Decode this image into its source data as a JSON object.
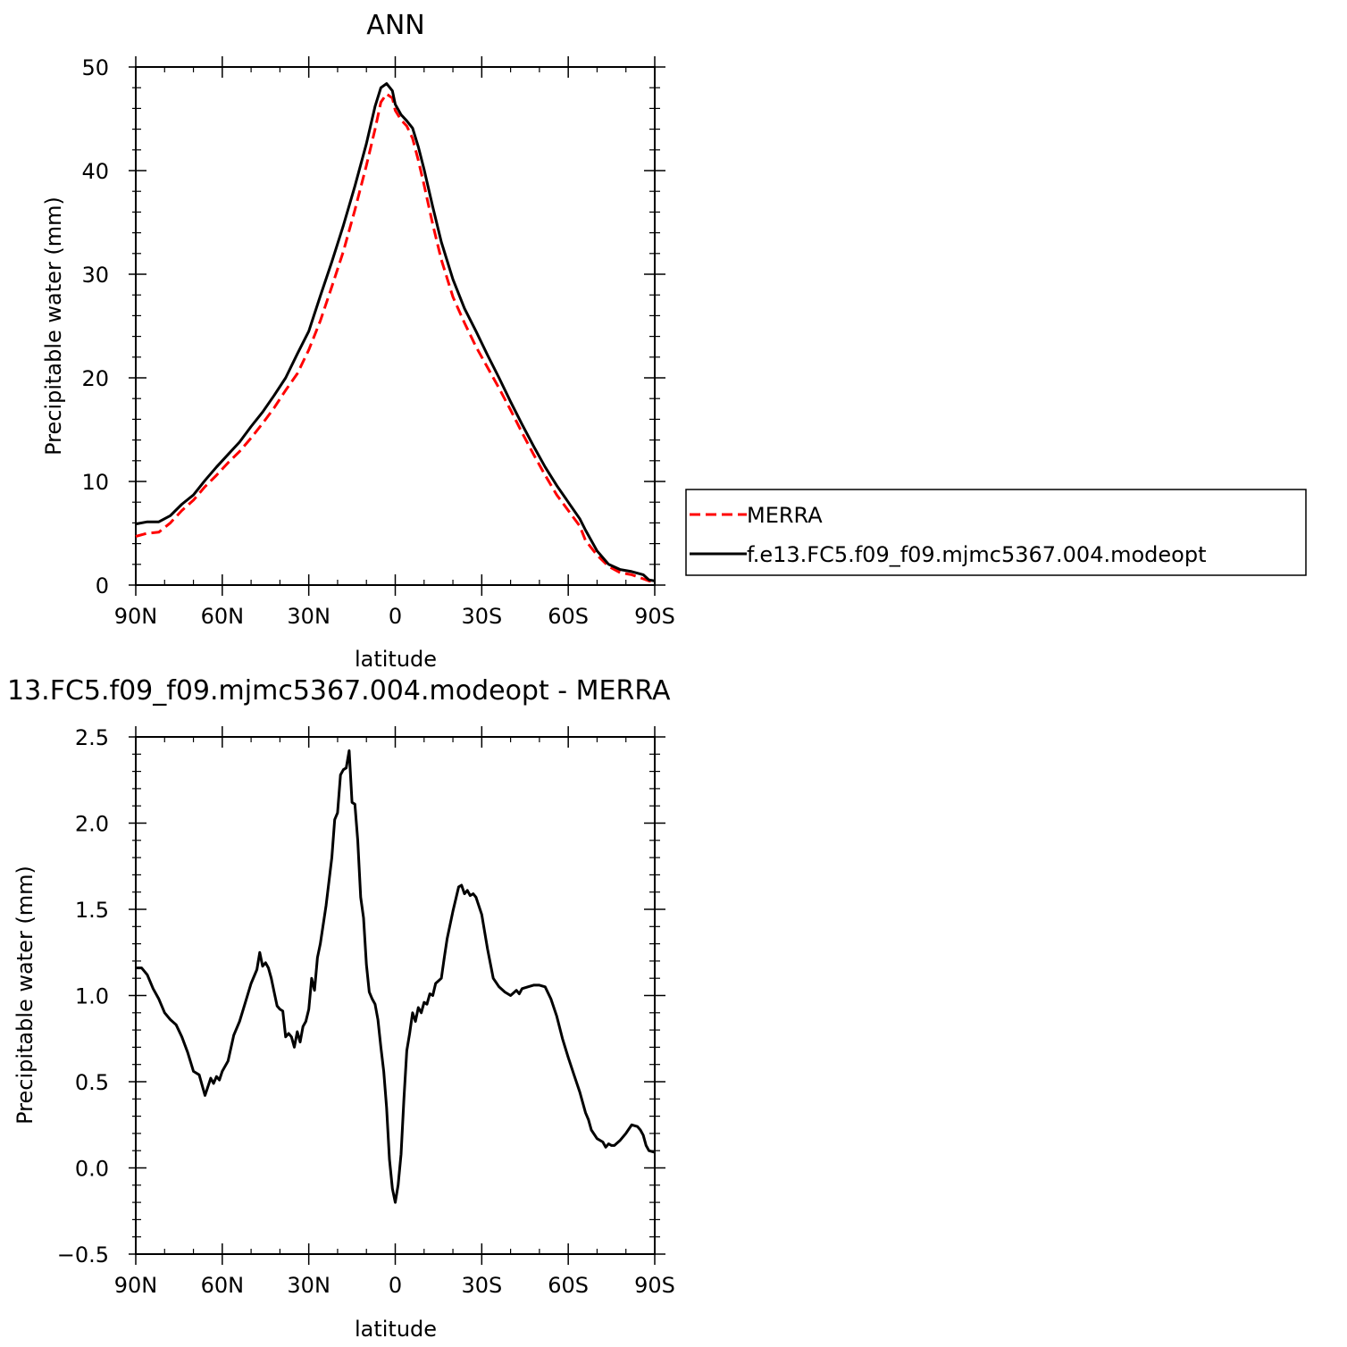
{
  "chart_data": [
    {
      "type": "line",
      "title": "ANN",
      "xlabel": "latitude",
      "ylabel": "Precipitable water (mm)",
      "x_tick_labels": [
        "90N",
        "60N",
        "30N",
        "0",
        "30S",
        "60S",
        "90S"
      ],
      "y_tick_labels": [
        "0",
        "10",
        "20",
        "30",
        "40",
        "50"
      ],
      "xlim": [
        90,
        -90
      ],
      "ylim": [
        0,
        50
      ],
      "legend": {
        "placement": "right",
        "entries": [
          "MERRA",
          "f.e13.FC5.f09_f09.mjmc5367.004.modeopt"
        ]
      },
      "series": [
        {
          "name": "MERRA",
          "color": "#ff0000",
          "dash": "dashed",
          "points": [
            [
              90,
              4.7
            ],
            [
              86,
              5.0
            ],
            [
              82,
              5.1
            ],
            [
              78,
              6.0
            ],
            [
              74,
              7.2
            ],
            [
              70,
              8.2
            ],
            [
              66,
              9.5
            ],
            [
              62,
              10.6
            ],
            [
              58,
              11.8
            ],
            [
              54,
              12.9
            ],
            [
              50,
              14.2
            ],
            [
              46,
              15.6
            ],
            [
              42,
              17.1
            ],
            [
              38,
              18.8
            ],
            [
              34,
              20.4
            ],
            [
              30,
              22.7
            ],
            [
              26,
              25.5
            ],
            [
              22,
              28.8
            ],
            [
              18,
              32.2
            ],
            [
              14,
              36.2
            ],
            [
              10,
              40.5
            ],
            [
              7,
              44.0
            ],
            [
              5,
              46.6
            ],
            [
              3,
              47.4
            ],
            [
              1,
              47.0
            ],
            [
              0,
              45.8
            ],
            [
              -2,
              44.9
            ],
            [
              -4,
              44.3
            ],
            [
              -6,
              43.1
            ],
            [
              -8,
              41.0
            ],
            [
              -10,
              38.6
            ],
            [
              -13,
              34.8
            ],
            [
              -16,
              31.4
            ],
            [
              -20,
              27.8
            ],
            [
              -24,
              25.3
            ],
            [
              -28,
              23.0
            ],
            [
              -32,
              21.0
            ],
            [
              -36,
              19.0
            ],
            [
              -40,
              16.9
            ],
            [
              -44,
              14.7
            ],
            [
              -48,
              12.6
            ],
            [
              -52,
              10.6
            ],
            [
              -56,
              8.7
            ],
            [
              -60,
              7.2
            ],
            [
              -64,
              5.7
            ],
            [
              -66,
              4.3
            ],
            [
              -70,
              2.9
            ],
            [
              -74,
              1.8
            ],
            [
              -78,
              1.2
            ],
            [
              -82,
              1.0
            ],
            [
              -86,
              0.6
            ],
            [
              -88,
              0.4
            ],
            [
              -90,
              0.3
            ]
          ]
        },
        {
          "name": "f.e13.FC5.f09_f09.mjmc5367.004.modeopt",
          "color": "#000000",
          "dash": "solid",
          "points": [
            [
              90,
              5.9
            ],
            [
              86,
              6.1
            ],
            [
              82,
              6.1
            ],
            [
              78,
              6.7
            ],
            [
              74,
              7.8
            ],
            [
              70,
              8.7
            ],
            [
              66,
              10.1
            ],
            [
              62,
              11.4
            ],
            [
              58,
              12.6
            ],
            [
              54,
              13.8
            ],
            [
              50,
              15.3
            ],
            [
              46,
              16.7
            ],
            [
              42,
              18.3
            ],
            [
              38,
              20.0
            ],
            [
              34,
              22.3
            ],
            [
              30,
              24.5
            ],
            [
              26,
              27.9
            ],
            [
              22,
              31.2
            ],
            [
              18,
              34.7
            ],
            [
              14,
              38.5
            ],
            [
              10,
              42.6
            ],
            [
              7,
              46.2
            ],
            [
              5,
              48.0
            ],
            [
              3,
              48.4
            ],
            [
              1,
              47.7
            ],
            [
              0,
              46.4
            ],
            [
              -2,
              45.4
            ],
            [
              -4,
              44.8
            ],
            [
              -6,
              44.1
            ],
            [
              -8,
              42.3
            ],
            [
              -10,
              40.1
            ],
            [
              -13,
              36.5
            ],
            [
              -16,
              33.1
            ],
            [
              -20,
              29.5
            ],
            [
              -24,
              26.7
            ],
            [
              -28,
              24.5
            ],
            [
              -32,
              22.2
            ],
            [
              -36,
              20.0
            ],
            [
              -40,
              17.7
            ],
            [
              -44,
              15.5
            ],
            [
              -48,
              13.4
            ],
            [
              -52,
              11.4
            ],
            [
              -56,
              9.6
            ],
            [
              -60,
              8.0
            ],
            [
              -64,
              6.4
            ],
            [
              -66,
              5.3
            ],
            [
              -70,
              3.3
            ],
            [
              -74,
              2.0
            ],
            [
              -78,
              1.5
            ],
            [
              -82,
              1.3
            ],
            [
              -86,
              1.0
            ],
            [
              -88,
              0.5
            ],
            [
              -90,
              0.4
            ]
          ]
        }
      ]
    },
    {
      "type": "line",
      "title": "13.FC5.f09_f09.mjmc5367.004.modeopt - MERRA",
      "xlabel": "latitude",
      "ylabel": "Precipitable water (mm)",
      "x_tick_labels": [
        "90N",
        "60N",
        "30N",
        "0",
        "30S",
        "60S",
        "90S"
      ],
      "y_tick_labels": [
        "−0.5",
        "0.0",
        "0.5",
        "1.0",
        "1.5",
        "2.0",
        "2.5"
      ],
      "xlim": [
        90,
        -90
      ],
      "ylim": [
        -0.5,
        2.5
      ],
      "series": [
        {
          "color": "#000000",
          "dash": "solid",
          "points": [
            [
              90,
              1.16
            ],
            [
              88,
              1.16
            ],
            [
              86,
              1.12
            ],
            [
              84,
              1.04
            ],
            [
              82,
              0.98
            ],
            [
              80,
              0.9
            ],
            [
              78,
              0.86
            ],
            [
              76,
              0.83
            ],
            [
              74,
              0.76
            ],
            [
              72,
              0.67
            ],
            [
              70,
              0.56
            ],
            [
              68,
              0.54
            ],
            [
              66,
              0.42
            ],
            [
              65,
              0.47
            ],
            [
              64,
              0.52
            ],
            [
              63,
              0.49
            ],
            [
              62,
              0.53
            ],
            [
              61,
              0.51
            ],
            [
              60,
              0.56
            ],
            [
              58,
              0.62
            ],
            [
              56,
              0.77
            ],
            [
              54,
              0.85
            ],
            [
              52,
              0.96
            ],
            [
              50,
              1.07
            ],
            [
              48,
              1.15
            ],
            [
              47,
              1.25
            ],
            [
              46,
              1.17
            ],
            [
              45,
              1.19
            ],
            [
              44,
              1.16
            ],
            [
              43,
              1.1
            ],
            [
              42,
              1.02
            ],
            [
              41,
              0.94
            ],
            [
              40,
              0.92
            ],
            [
              39,
              0.91
            ],
            [
              38,
              0.76
            ],
            [
              37,
              0.78
            ],
            [
              36,
              0.76
            ],
            [
              35,
              0.7
            ],
            [
              34,
              0.79
            ],
            [
              33,
              0.73
            ],
            [
              32,
              0.82
            ],
            [
              31,
              0.85
            ],
            [
              30,
              0.92
            ],
            [
              29,
              1.1
            ],
            [
              28,
              1.03
            ],
            [
              27,
              1.22
            ],
            [
              26,
              1.3
            ],
            [
              24,
              1.52
            ],
            [
              22,
              1.8
            ],
            [
              21,
              2.02
            ],
            [
              20,
              2.06
            ],
            [
              19,
              2.28
            ],
            [
              18,
              2.31
            ],
            [
              17,
              2.32
            ],
            [
              16,
              2.42
            ],
            [
              15,
              2.12
            ],
            [
              14,
              2.11
            ],
            [
              13,
              1.9
            ],
            [
              12,
              1.57
            ],
            [
              11,
              1.45
            ],
            [
              10,
              1.18
            ],
            [
              9,
              1.02
            ],
            [
              8,
              0.98
            ],
            [
              7,
              0.95
            ],
            [
              6,
              0.86
            ],
            [
              5,
              0.7
            ],
            [
              4,
              0.56
            ],
            [
              3,
              0.35
            ],
            [
              2,
              0.05
            ],
            [
              1,
              -0.12
            ],
            [
              0,
              -0.2
            ],
            [
              -1,
              -0.1
            ],
            [
              -2,
              0.08
            ],
            [
              -3,
              0.4
            ],
            [
              -4,
              0.68
            ],
            [
              -5,
              0.78
            ],
            [
              -6,
              0.9
            ],
            [
              -7,
              0.85
            ],
            [
              -8,
              0.93
            ],
            [
              -9,
              0.9
            ],
            [
              -10,
              0.96
            ],
            [
              -11,
              0.95
            ],
            [
              -12,
              1.01
            ],
            [
              -13,
              1.0
            ],
            [
              -14,
              1.07
            ],
            [
              -16,
              1.1
            ],
            [
              -17,
              1.22
            ],
            [
              -18,
              1.33
            ],
            [
              -20,
              1.49
            ],
            [
              -22,
              1.63
            ],
            [
              -23,
              1.64
            ],
            [
              -24,
              1.59
            ],
            [
              -25,
              1.61
            ],
            [
              -26,
              1.58
            ],
            [
              -27,
              1.59
            ],
            [
              -28,
              1.57
            ],
            [
              -30,
              1.47
            ],
            [
              -32,
              1.27
            ],
            [
              -34,
              1.1
            ],
            [
              -36,
              1.05
            ],
            [
              -38,
              1.02
            ],
            [
              -40,
              1.0
            ],
            [
              -42,
              1.03
            ],
            [
              -43,
              1.01
            ],
            [
              -44,
              1.04
            ],
            [
              -46,
              1.05
            ],
            [
              -48,
              1.06
            ],
            [
              -50,
              1.06
            ],
            [
              -52,
              1.05
            ],
            [
              -54,
              0.98
            ],
            [
              -56,
              0.88
            ],
            [
              -58,
              0.75
            ],
            [
              -60,
              0.64
            ],
            [
              -62,
              0.54
            ],
            [
              -64,
              0.44
            ],
            [
              -66,
              0.32
            ],
            [
              -67,
              0.28
            ],
            [
              -68,
              0.22
            ],
            [
              -70,
              0.17
            ],
            [
              -72,
              0.15
            ],
            [
              -73,
              0.12
            ],
            [
              -74,
              0.14
            ],
            [
              -75,
              0.13
            ],
            [
              -76,
              0.13
            ],
            [
              -78,
              0.16
            ],
            [
              -80,
              0.2
            ],
            [
              -82,
              0.25
            ],
            [
              -84,
              0.24
            ],
            [
              -85,
              0.22
            ],
            [
              -86,
              0.19
            ],
            [
              -87,
              0.13
            ],
            [
              -88,
              0.1
            ],
            [
              -90,
              0.09
            ]
          ]
        }
      ]
    }
  ]
}
